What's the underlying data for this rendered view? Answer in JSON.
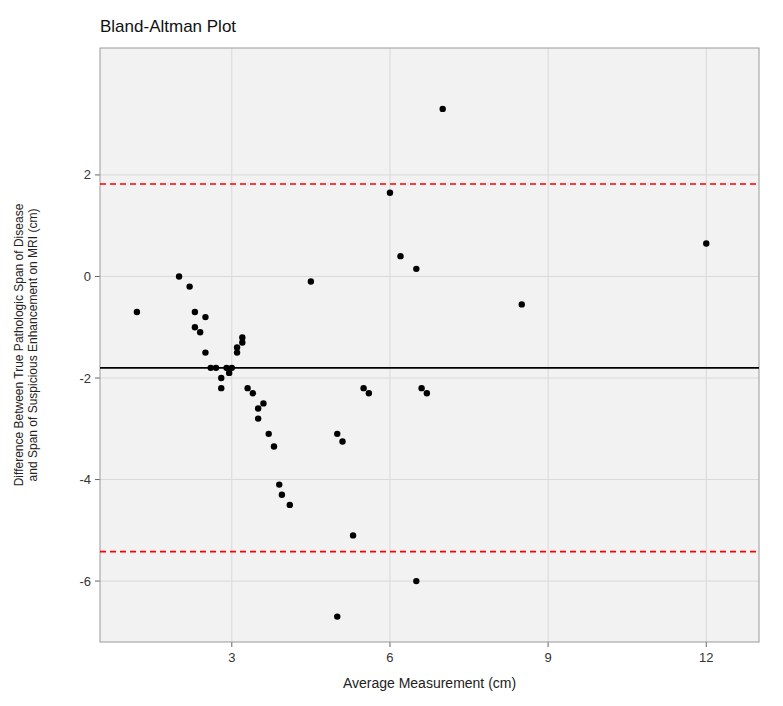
{
  "chart_data": {
    "type": "scatter",
    "title": "Bland-Altman Plot",
    "xlabel": "Average Measurement (cm)",
    "ylabel": "Difference Between True Pathologic Span of Disease\nand Span of Suspicious Enhancement on MRI (cm)",
    "x": [
      1.2,
      2.0,
      2.2,
      2.3,
      2.3,
      2.4,
      2.5,
      2.5,
      2.6,
      2.7,
      2.8,
      2.8,
      2.9,
      2.95,
      3.0,
      3.1,
      3.1,
      3.2,
      3.2,
      3.3,
      3.4,
      3.5,
      3.5,
      3.6,
      3.7,
      3.8,
      3.9,
      3.95,
      4.1,
      4.5,
      5.0,
      5.1,
      5.3,
      5.5,
      5.6,
      6.0,
      6.2,
      6.5,
      6.6,
      6.7,
      6.5,
      5.0,
      7.0,
      8.5,
      12.0
    ],
    "values": [
      -0.7,
      0.0,
      -0.2,
      -0.7,
      -1.0,
      -1.1,
      -1.5,
      -0.8,
      -1.8,
      -1.8,
      -2.0,
      -2.2,
      -1.8,
      -1.9,
      -1.8,
      -1.4,
      -1.5,
      -1.3,
      -1.2,
      -2.2,
      -2.3,
      -2.6,
      -2.8,
      -2.5,
      -3.1,
      -3.35,
      -4.1,
      -4.3,
      -4.5,
      -0.1,
      -3.1,
      -3.25,
      -5.1,
      -2.2,
      -2.3,
      1.65,
      0.4,
      0.15,
      -2.2,
      -2.3,
      -6.0,
      -6.7,
      3.3,
      -0.55,
      0.65
    ],
    "color": "black",
    "marker": "circle",
    "reference_lines": [
      {
        "value": -1.8,
        "color": "black",
        "line_style": "solid"
      },
      {
        "value": 1.82,
        "color": "red",
        "line_style": "dashed"
      },
      {
        "value": -5.42,
        "color": "red",
        "line_style": "dashed"
      }
    ],
    "xlim": [
      0.5,
      13.0
    ],
    "ylim": [
      -7.2,
      4.5
    ],
    "xticks": [
      3,
      6,
      9,
      12
    ],
    "yticks": [
      -6,
      -4,
      -2,
      0,
      2
    ],
    "grid": true
  }
}
